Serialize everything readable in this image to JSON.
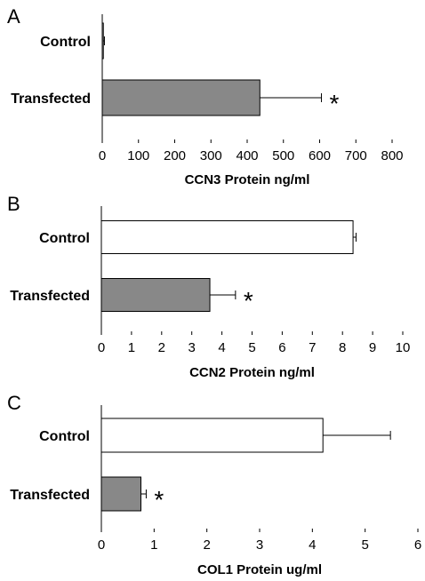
{
  "chart_data": [
    {
      "type": "bar",
      "orientation": "horizontal",
      "panel_label": "A",
      "categories": [
        "Control",
        "Transfected"
      ],
      "values": [
        3,
        435
      ],
      "errors": [
        3,
        170
      ],
      "fills": [
        "#ffffff",
        "#888888"
      ],
      "significance": [
        "",
        "*"
      ],
      "xlabel": "CCN3 Protein ng/ml",
      "xlim": [
        0,
        800
      ],
      "ticks": [
        0,
        100,
        200,
        300,
        400,
        500,
        600,
        700,
        800
      ],
      "grid": false
    },
    {
      "type": "bar",
      "orientation": "horizontal",
      "panel_label": "B",
      "categories": [
        "Control",
        "Transfected"
      ],
      "values": [
        8.35,
        3.6
      ],
      "errors": [
        0.1,
        0.85
      ],
      "fills": [
        "#ffffff",
        "#888888"
      ],
      "significance": [
        "",
        "*"
      ],
      "xlabel": "CCN2 Protein ng/ml",
      "xlim": [
        0,
        10
      ],
      "ticks": [
        0,
        1,
        2,
        3,
        4,
        5,
        6,
        7,
        8,
        9,
        10
      ],
      "grid": false
    },
    {
      "type": "bar",
      "orientation": "horizontal",
      "panel_label": "C",
      "categories": [
        "Control",
        "Transfected"
      ],
      "values": [
        4.2,
        0.75
      ],
      "errors": [
        1.28,
        0.1
      ],
      "fills": [
        "#ffffff",
        "#888888"
      ],
      "significance": [
        "",
        "*"
      ],
      "xlabel": "COL1 Protein ug/ml",
      "xlim": [
        0,
        6
      ],
      "ticks": [
        0,
        1,
        2,
        3,
        4,
        5,
        6
      ],
      "grid": false
    }
  ]
}
